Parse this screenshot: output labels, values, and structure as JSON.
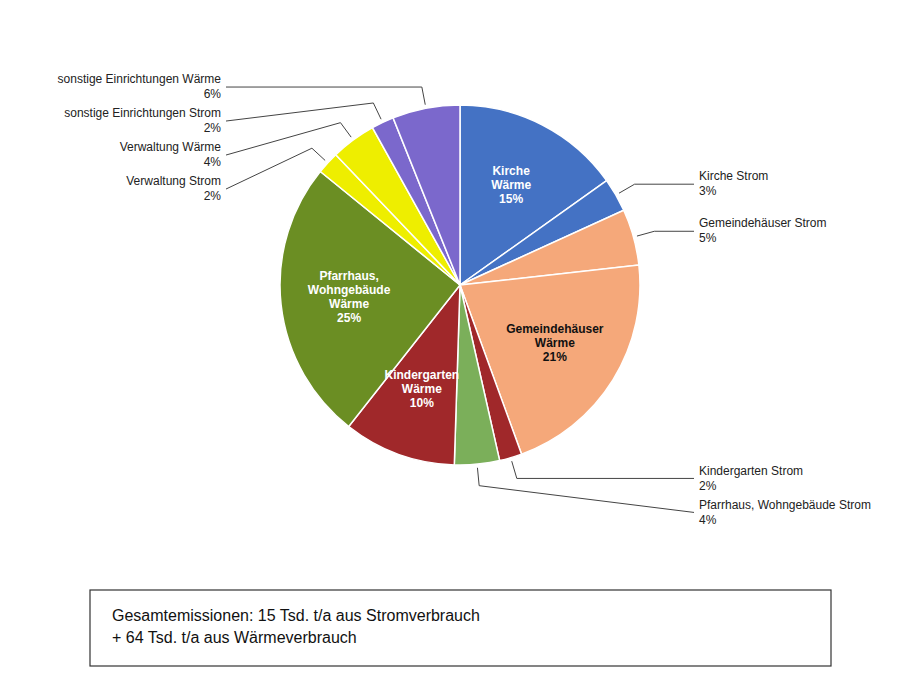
{
  "chart_data": {
    "type": "pie",
    "categories": [
      "Kirche Wärme",
      "Kirche Strom",
      "Gemeindehäuser Strom",
      "Gemeindehäuser Wärme",
      "Kindergarten Strom",
      "Pfarrhaus, Wohngebäude Strom",
      "Kindergarten Wärme",
      "Pfarrhaus, Wohngebäude Wärme",
      "Verwaltung Strom",
      "Verwaltung Wärme",
      "sonstige Einrichtungen Strom",
      "sonstige Einrichtungen Wärme"
    ],
    "values": [
      15,
      3,
      5,
      21,
      2,
      4,
      10,
      25,
      2,
      4,
      2,
      6
    ],
    "value_labels": [
      "15%",
      "3%",
      "5%",
      "21%",
      "2%",
      "4%",
      "10%",
      "25%",
      "2%",
      "4%",
      "2%",
      "6%"
    ],
    "colors": [
      "#4472C4",
      "#4472C4",
      "#F5A87A",
      "#F5A87A",
      "#A0282A",
      "#7BAF5A",
      "#A0282A",
      "#6B8E23",
      "#EEEE00",
      "#EEEE00",
      "#7B68CC",
      "#7B68CC"
    ],
    "data_labels": true,
    "annotation": "Gesamtemissionen: 15 Tsd. t/a aus Stromverbrauch\n+ 64 Tsd. t/a aus Wärmeverbrauch"
  }
}
